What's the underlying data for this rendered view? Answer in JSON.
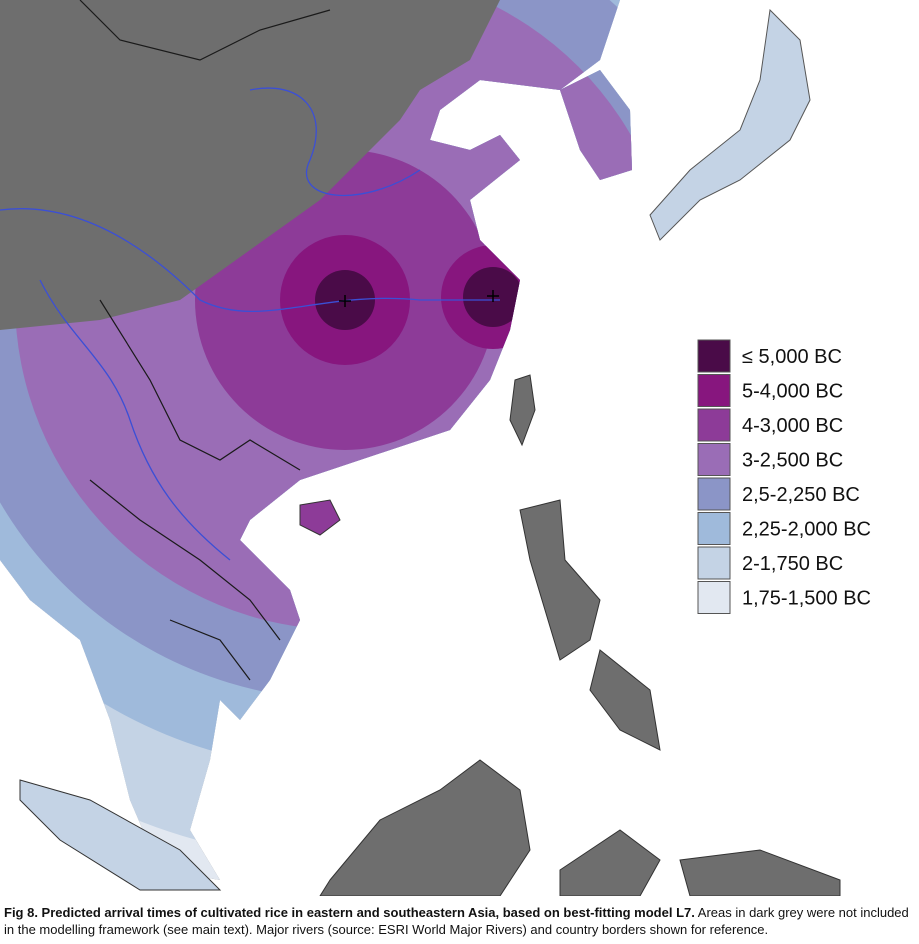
{
  "legend": {
    "items": [
      {
        "label": "≤ 5,000 BC",
        "color": "#4a0b48"
      },
      {
        "label": "5-4,000 BC",
        "color": "#87167e"
      },
      {
        "label": "4-3,000 BC",
        "color": "#8d3b98"
      },
      {
        "label": "3-2,500 BC",
        "color": "#9a6db6"
      },
      {
        "label": "2,5-2,250 BC",
        "color": "#8b95c7"
      },
      {
        "label": "2,25-2,000 BC",
        "color": "#9fbadb"
      },
      {
        "label": "2-1,750 BC",
        "color": "#c4d3e5"
      },
      {
        "label": "1,75-1,500 BC",
        "color": "#e2e8f1"
      }
    ]
  },
  "caption": {
    "bold": "Fig 8. Predicted arrival times of cultivated rice in eastern and southeastern Asia, based on best-fitting model L7.",
    "text": " Areas in dark grey were not included in the modelling framework (see main text). Major rivers (source: ESRI World Major Rivers) and country borders shown for reference."
  }
}
